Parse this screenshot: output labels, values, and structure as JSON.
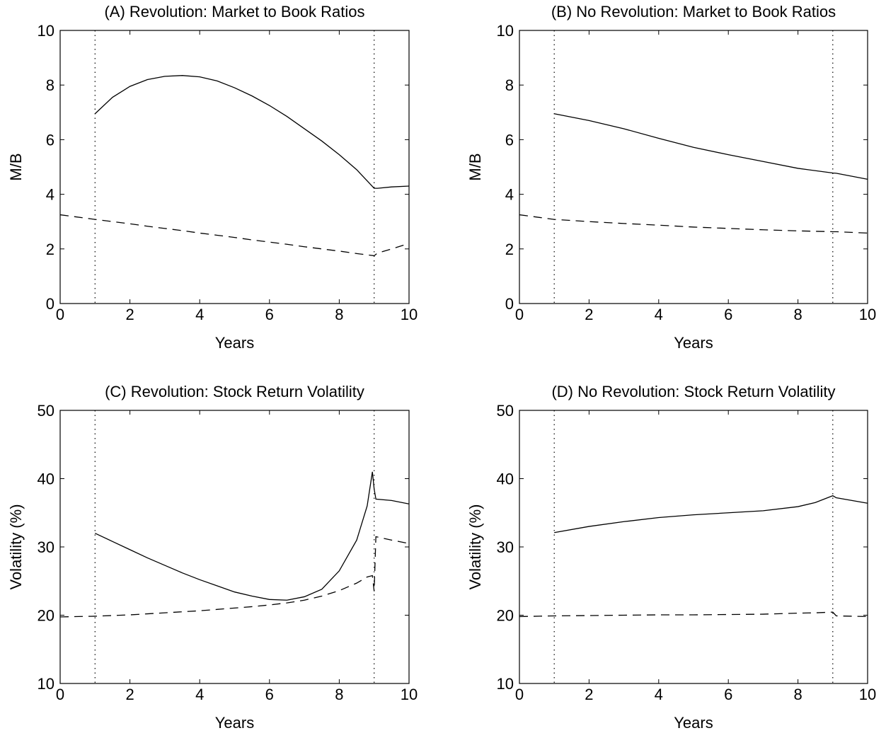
{
  "chart_data": [
    {
      "type": "line",
      "title": "(A) Revolution: Market to Book Ratios",
      "xlabel": "Years",
      "ylabel": "M/B",
      "x": [
        0,
        1,
        1.5,
        2,
        2.5,
        3,
        3.5,
        4,
        4.5,
        5,
        5.5,
        6,
        6.5,
        7,
        7.5,
        8,
        8.5,
        9,
        9.1,
        9.5,
        10
      ],
      "series": [
        {
          "color": "#000000",
          "dash": "solid",
          "values": [
            null,
            6.95,
            7.55,
            7.95,
            8.2,
            8.32,
            8.35,
            8.3,
            8.15,
            7.9,
            7.6,
            7.25,
            6.85,
            6.4,
            5.95,
            5.45,
            4.9,
            4.22,
            4.22,
            4.27,
            4.3
          ]
        },
        {
          "color": "#000000",
          "dash": "dashed",
          "values": [
            3.25,
            3.08,
            3.0,
            2.92,
            2.83,
            2.75,
            2.67,
            2.58,
            2.5,
            2.42,
            2.33,
            2.25,
            2.17,
            2.08,
            2.0,
            1.92,
            1.83,
            1.75,
            1.85,
            2.0,
            2.2
          ]
        }
      ],
      "vlines": [
        1,
        9
      ],
      "xlim": [
        0,
        10
      ],
      "xticks": [
        0,
        2,
        4,
        6,
        8,
        10
      ],
      "ylim": [
        0,
        10
      ],
      "yticks": [
        0,
        2,
        4,
        6,
        8,
        10
      ]
    },
    {
      "type": "line",
      "title": "(B) No Revolution: Market to Book Ratios",
      "xlabel": "Years",
      "ylabel": "M/B",
      "x": [
        0,
        1,
        2,
        3,
        4,
        5,
        6,
        7,
        8,
        9,
        9.1,
        10
      ],
      "series": [
        {
          "color": "#000000",
          "dash": "solid",
          "values": [
            null,
            6.95,
            6.7,
            6.4,
            6.05,
            5.72,
            5.45,
            5.2,
            4.95,
            4.78,
            4.77,
            4.55
          ]
        },
        {
          "color": "#000000",
          "dash": "dashed",
          "values": [
            3.25,
            3.08,
            3.0,
            2.93,
            2.87,
            2.8,
            2.75,
            2.7,
            2.66,
            2.63,
            2.63,
            2.58
          ]
        }
      ],
      "vlines": [
        1,
        9
      ],
      "xlim": [
        0,
        10
      ],
      "xticks": [
        0,
        2,
        4,
        6,
        8,
        10
      ],
      "ylim": [
        0,
        10
      ],
      "yticks": [
        0,
        2,
        4,
        6,
        8,
        10
      ]
    },
    {
      "type": "line",
      "title": "(C) Revolution: Stock Return Volatility",
      "xlabel": "Years",
      "ylabel": "Volatility (%)",
      "x": [
        0,
        1,
        1.5,
        2,
        2.5,
        3,
        3.5,
        4,
        4.5,
        5,
        5.5,
        6,
        6.5,
        7,
        7.5,
        8,
        8.5,
        8.8,
        8.95,
        9.0,
        9.05,
        9.5,
        10
      ],
      "series": [
        {
          "color": "#000000",
          "dash": "solid",
          "values": [
            null,
            32,
            30.8,
            29.6,
            28.4,
            27.3,
            26.2,
            25.2,
            24.3,
            23.4,
            22.8,
            22.3,
            22.2,
            22.7,
            23.8,
            26.5,
            31,
            36,
            41,
            38.5,
            37,
            36.8,
            36.3
          ]
        },
        {
          "color": "#000000",
          "dash": "dashed",
          "values": [
            19.75,
            19.85,
            19.95,
            20.05,
            20.2,
            20.35,
            20.5,
            20.65,
            20.85,
            21.05,
            21.25,
            21.5,
            21.8,
            22.2,
            22.8,
            23.6,
            24.7,
            25.6,
            25.8,
            23.5,
            31.5,
            31,
            30.5
          ]
        }
      ],
      "vlines": [
        1,
        9
      ],
      "xlim": [
        0,
        10
      ],
      "xticks": [
        0,
        2,
        4,
        6,
        8,
        10
      ],
      "ylim": [
        10,
        50
      ],
      "yticks": [
        10,
        20,
        30,
        40,
        50
      ]
    },
    {
      "type": "line",
      "title": "(D) No Revolution: Stock Return Volatility",
      "xlabel": "Years",
      "ylabel": "Volatility (%)",
      "x": [
        0,
        1,
        2,
        3,
        4,
        5,
        6,
        7,
        8,
        8.5,
        9,
        9.1,
        10
      ],
      "series": [
        {
          "color": "#000000",
          "dash": "solid",
          "values": [
            null,
            32.1,
            33,
            33.7,
            34.3,
            34.7,
            35,
            35.3,
            35.9,
            36.5,
            37.5,
            37.2,
            36.4
          ]
        },
        {
          "color": "#000000",
          "dash": "dashed",
          "values": [
            19.8,
            19.9,
            19.95,
            20.0,
            20.05,
            20.05,
            20.1,
            20.15,
            20.3,
            20.35,
            20.45,
            19.9,
            19.8
          ]
        }
      ],
      "vlines": [
        1,
        9
      ],
      "xlim": [
        0,
        10
      ],
      "xticks": [
        0,
        2,
        4,
        6,
        8,
        10
      ],
      "ylim": [
        10,
        50
      ],
      "yticks": [
        10,
        20,
        30,
        40,
        50
      ]
    }
  ]
}
